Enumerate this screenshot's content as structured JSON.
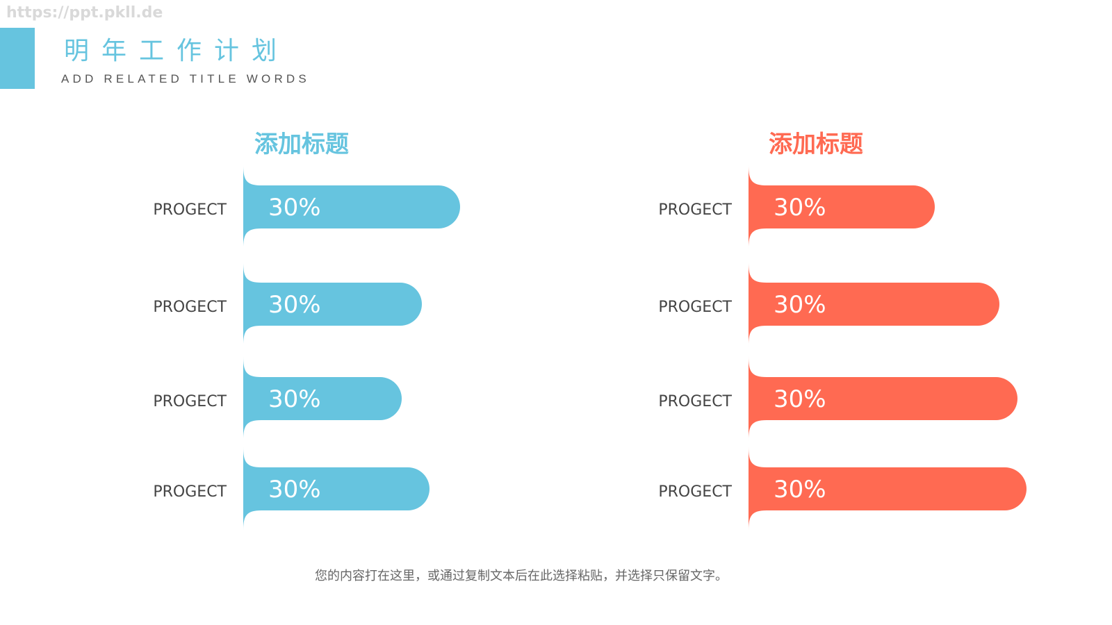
{
  "watermark": "https://ppt.pkll.de",
  "header": {
    "title": "明年工作计划",
    "subtitle": "ADD RELATED TITLE WORDS",
    "accent_color": "#66c4df"
  },
  "footer": {
    "text": "您的内容打在这里，或通过复制文本后在此选择粘贴，并选择只保留文字。"
  },
  "chart_data": [
    {
      "type": "bar",
      "orientation": "horizontal",
      "title": "添加标题",
      "color": "#66c4df",
      "categories": [
        "PROGECT",
        "PROGECT",
        "PROGECT",
        "PROGECT"
      ],
      "values": [
        30,
        30,
        30,
        30
      ],
      "value_labels": [
        "30%",
        "30%",
        "30%",
        "30%"
      ]
    },
    {
      "type": "bar",
      "orientation": "horizontal",
      "title": "添加标题",
      "color": "#ff6a52",
      "categories": [
        "PROGECT",
        "PROGECT",
        "PROGECT",
        "PROGECT"
      ],
      "values": [
        30,
        30,
        30,
        30
      ],
      "value_labels": [
        "30%",
        "30%",
        "30%",
        "30%"
      ]
    }
  ]
}
